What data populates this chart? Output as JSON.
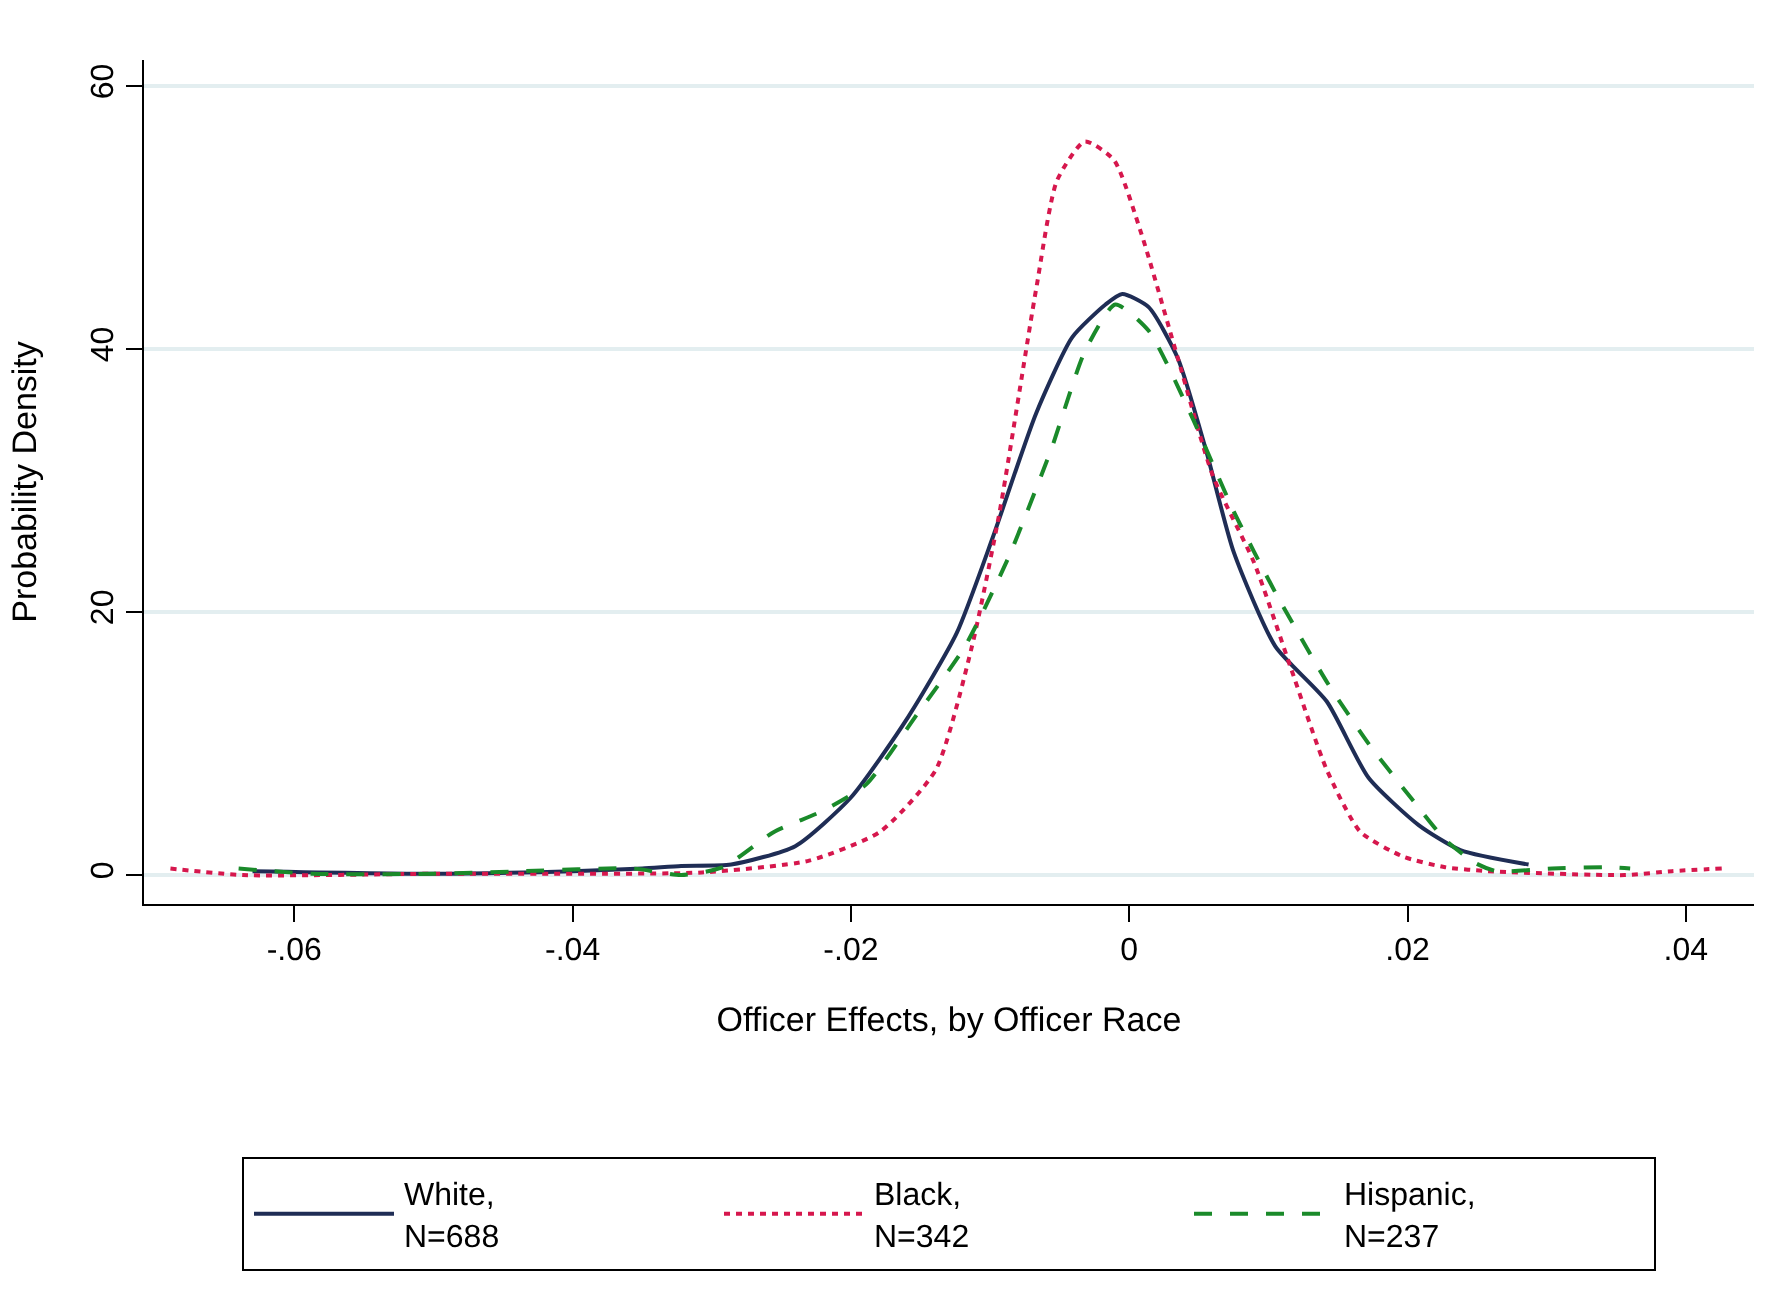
{
  "chart_data": {
    "type": "line",
    "xlabel": "Officer Effects, by Officer Race",
    "ylabel": "Probability Density",
    "xlim": [
      -0.0708,
      0.0449
    ],
    "xticks": [
      {
        "value": -0.06,
        "label": "-.06"
      },
      {
        "value": -0.04,
        "label": "-.04"
      },
      {
        "value": -0.02,
        "label": "-.02"
      },
      0,
      {
        "value": 0.02,
        "label": ".02"
      },
      {
        "value": 0.04,
        "label": ".04"
      }
    ],
    "ylim": [
      -2.2,
      62
    ],
    "yticks": [
      0,
      20,
      40,
      60
    ],
    "grid": "y",
    "legend": "bottom",
    "marker": "none",
    "series": [
      {
        "name": "White,\nN=688",
        "color": "#1f2d55",
        "line_style": "solid",
        "x": [
          -0.063,
          -0.05,
          -0.04,
          -0.035,
          -0.0322,
          -0.0286,
          -0.024,
          -0.02,
          -0.0159,
          -0.0124,
          -0.0098,
          -0.0067,
          -0.0041,
          -0.0017,
          -0.0005,
          0.0014,
          0.0035,
          0.0055,
          0.0075,
          0.0105,
          0.0142,
          0.0172,
          0.0208,
          0.0238,
          0.0287
        ],
        "values": [
          0.3,
          0.1,
          0.3,
          0.5,
          0.7,
          0.8,
          2.2,
          5.9,
          12,
          18.4,
          25.7,
          35.1,
          40.9,
          43.4,
          44.2,
          43.2,
          39.3,
          32.4,
          24.6,
          17.4,
          13.2,
          7.4,
          3.8,
          1.9,
          0.8
        ]
      },
      {
        "name": "Black,\nN=342",
        "color": "#d6174d",
        "line_style": "dotted",
        "x": [
          -0.0689,
          -0.0637,
          -0.05,
          -0.04,
          -0.0307,
          -0.023,
          -0.0179,
          -0.0139,
          -0.0113,
          -0.0093,
          -0.0067,
          -0.0052,
          -0.0032,
          -0.0011,
          0.0009,
          0.0035,
          0.006,
          0.009,
          0.0116,
          0.0142,
          0.0166,
          0.0197,
          0.0227,
          0.0258,
          0.0356,
          0.039,
          0.0426
        ],
        "values": [
          0.5,
          0,
          0.1,
          0.1,
          0.2,
          1.1,
          3.3,
          8,
          17.4,
          27.7,
          44.5,
          52.8,
          55.8,
          54.4,
          48.7,
          39.3,
          30.4,
          23.7,
          15.8,
          8,
          3.3,
          1.4,
          0.6,
          0.3,
          0,
          0.3,
          0.5
        ]
      },
      {
        "name": "Hispanic,\nN=237",
        "color": "#1a8a2a",
        "line_style": "dashed",
        "x": [
          -0.064,
          -0.0587,
          -0.05,
          -0.0434,
          -0.0357,
          -0.0322,
          -0.0292,
          -0.0255,
          -0.022,
          -0.0189,
          -0.0154,
          -0.0118,
          -0.0087,
          -0.0056,
          -0.0032,
          -0.001,
          0.0014,
          0.0044,
          0.0075,
          0.0105,
          0.0142,
          0.0172,
          0.0203,
          0.0227,
          0.0249,
          0.0264,
          0.0304,
          0.0345,
          0.036
        ],
        "values": [
          0.5,
          0.1,
          0.1,
          0.3,
          0.5,
          0,
          0.6,
          3.3,
          4.9,
          6.9,
          12,
          17.4,
          24.1,
          32.4,
          39.8,
          43.4,
          41.4,
          35.1,
          27.7,
          21.5,
          14.7,
          10,
          5.8,
          2.7,
          0.9,
          0.3,
          0.5,
          0.6,
          0.5
        ]
      }
    ]
  }
}
